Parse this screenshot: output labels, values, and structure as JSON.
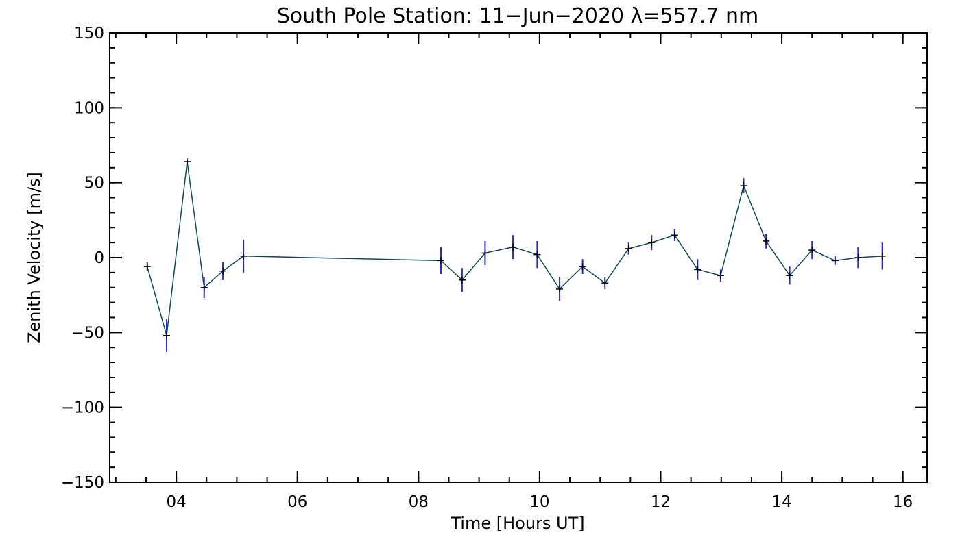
{
  "colors": {
    "background": "#ffffff",
    "axes": "#000000",
    "line": "#0f4a5a",
    "error_bar": "#2a2ad6",
    "marker": "#000000"
  },
  "chart_data": {
    "type": "line",
    "title": "South Pole Station: 11−Jun−2020 λ=557.7 nm",
    "xlabel": "Time [Hours UT]",
    "ylabel": "Zenith Velocity [m/s]",
    "xlim": [
      2.9,
      16.4
    ],
    "ylim": [
      -150,
      150
    ],
    "grid": false,
    "x_major_ticks": [
      4,
      6,
      8,
      10,
      12,
      14,
      16
    ],
    "x_tick_labels": [
      "04",
      "06",
      "08",
      "10",
      "12",
      "14",
      "16"
    ],
    "x_minor_step": 0.5,
    "y_major_ticks": [
      -150,
      -100,
      -50,
      0,
      50,
      100,
      150
    ],
    "y_tick_labels": [
      "−150",
      "−100",
      "−50",
      "0",
      "50",
      "100",
      "150"
    ],
    "y_minor_step": 10,
    "series": [
      {
        "name": "Zenith Velocity",
        "x": [
          3.52,
          3.84,
          4.18,
          4.46,
          4.77,
          5.11,
          8.37,
          8.72,
          9.1,
          9.56,
          9.96,
          10.33,
          10.71,
          11.08,
          11.47,
          11.85,
          12.23,
          12.61,
          12.99,
          13.37,
          13.74,
          14.13,
          14.5,
          14.88,
          15.26,
          15.66
        ],
        "values": [
          -6,
          -52,
          64,
          -20,
          -9,
          1,
          -2,
          -15,
          3,
          7,
          2,
          -21,
          -6,
          -17,
          6,
          10,
          15,
          -8,
          -12,
          48,
          11,
          -12,
          5,
          -2,
          0,
          1
        ],
        "errors": [
          3,
          11,
          1,
          7,
          6,
          11,
          9,
          8,
          8,
          8,
          9,
          8,
          5,
          4,
          4,
          5,
          4,
          7,
          4,
          5,
          5,
          6,
          6,
          3,
          7,
          9
        ]
      }
    ]
  }
}
